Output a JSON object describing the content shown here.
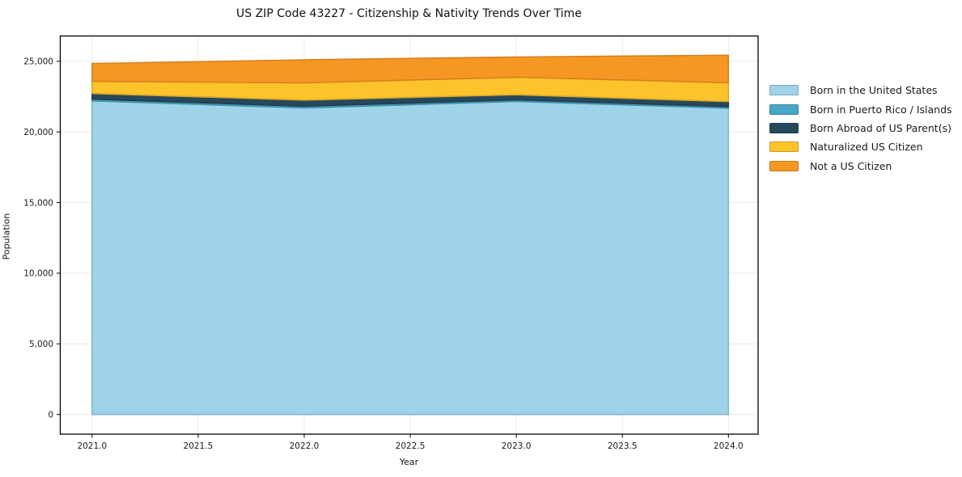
{
  "chart_data": {
    "type": "area",
    "stacked": true,
    "title": "US ZIP Code 43227 - Citizenship & Nativity Trends Over Time",
    "xlabel": "Year",
    "ylabel": "Population",
    "x": [
      2021,
      2022,
      2023,
      2024
    ],
    "series": [
      {
        "name": "Born in the United States",
        "color": "#9ED3EA",
        "values": [
          22200,
          21700,
          22160,
          21680
        ]
      },
      {
        "name": "Born in Puerto Rico / Islands",
        "color": "#47A8C5",
        "values": [
          120,
          120,
          110,
          110
        ]
      },
      {
        "name": "Born Abroad of US Parent(s)",
        "color": "#27485C",
        "values": [
          400,
          430,
          360,
          360
        ]
      },
      {
        "name": "Naturalized US Citizen",
        "color": "#FCC32B",
        "values": [
          860,
          1220,
          1240,
          1330
        ]
      },
      {
        "name": "Not a US Citizen",
        "color": "#F79723",
        "values": [
          1260,
          1630,
          1430,
          1950
        ]
      }
    ],
    "totals": [
      24840,
      25100,
      25300,
      25430
    ],
    "xlim": [
      2020.85,
      2024.14
    ],
    "ylim": [
      -1390,
      26790
    ],
    "x_ticks": [
      {
        "value": 2021.0,
        "label": "2021.0"
      },
      {
        "value": 2021.5,
        "label": "2021.5"
      },
      {
        "value": 2022.0,
        "label": "2022.0"
      },
      {
        "value": 2022.5,
        "label": "2022.5"
      },
      {
        "value": 2023.0,
        "label": "2023.0"
      },
      {
        "value": 2023.5,
        "label": "2023.5"
      },
      {
        "value": 2024.0,
        "label": "2024.0"
      }
    ],
    "y_ticks": [
      {
        "value": 0,
        "label": "0"
      },
      {
        "value": 5000,
        "label": "5,000"
      },
      {
        "value": 10000,
        "label": "10,000"
      },
      {
        "value": 15000,
        "label": "15,000"
      },
      {
        "value": 20000,
        "label": "20,000"
      },
      {
        "value": 25000,
        "label": "25,000"
      }
    ],
    "legend_position": "right",
    "grid": true,
    "grid_color": "#e9e9e9",
    "frame_color": "#000000",
    "background_color": "#ffffff"
  }
}
